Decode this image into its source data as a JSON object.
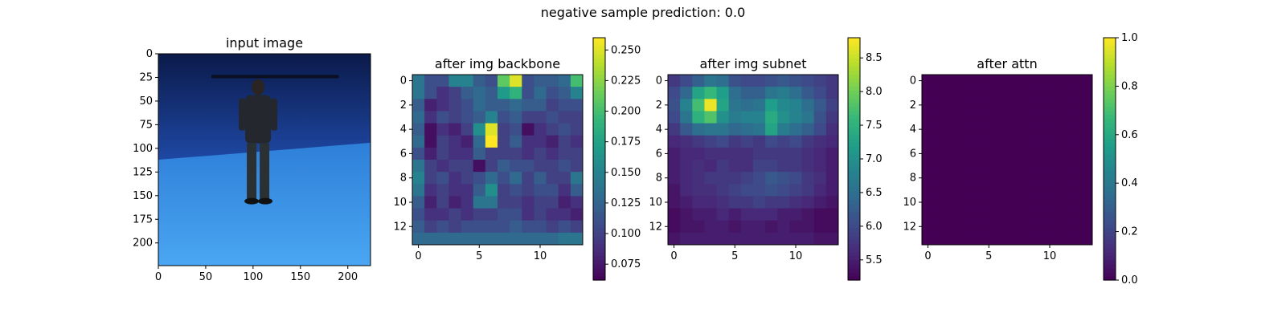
{
  "suptitle": "negative sample     prediction: 0.0",
  "chart_data": [
    {
      "type": "image",
      "title": "input image",
      "description_visible": "blue-lit studio, standing person in dark jacket",
      "x_ticks": [
        0,
        50,
        100,
        150,
        200
      ],
      "y_ticks": [
        0,
        25,
        50,
        75,
        100,
        125,
        150,
        175,
        200
      ],
      "xlim": [
        0,
        224
      ],
      "ylim": [
        224,
        0
      ]
    },
    {
      "type": "heatmap",
      "title": "after img backbone",
      "colormap": "viridis",
      "grid_size": 14,
      "x_ticks": [
        0,
        5,
        10
      ],
      "y_ticks": [
        0,
        2,
        4,
        6,
        8,
        10,
        12
      ],
      "colorbar": {
        "min": 0.062,
        "max": 0.26,
        "ticks": [
          0.075,
          0.1,
          0.125,
          0.15,
          0.175,
          0.2,
          0.225,
          0.25
        ],
        "labels": [
          "0.075",
          "0.100",
          "0.125",
          "0.150",
          "0.175",
          "0.200",
          "0.225",
          "0.250"
        ]
      },
      "values": [
        [
          0.14,
          0.11,
          0.11,
          0.15,
          0.15,
          0.12,
          0.11,
          0.21,
          0.25,
          0.11,
          0.12,
          0.12,
          0.13,
          0.2
        ],
        [
          0.14,
          0.11,
          0.09,
          0.1,
          0.12,
          0.13,
          0.12,
          0.17,
          0.19,
          0.11,
          0.13,
          0.11,
          0.12,
          0.15
        ],
        [
          0.12,
          0.08,
          0.09,
          0.1,
          0.11,
          0.13,
          0.12,
          0.12,
          0.13,
          0.12,
          0.12,
          0.1,
          0.11,
          0.11
        ],
        [
          0.13,
          0.09,
          0.11,
          0.1,
          0.11,
          0.12,
          0.15,
          0.11,
          0.12,
          0.1,
          0.1,
          0.11,
          0.1,
          0.1
        ],
        [
          0.12,
          0.07,
          0.09,
          0.08,
          0.1,
          0.16,
          0.25,
          0.1,
          0.11,
          0.07,
          0.09,
          0.1,
          0.11,
          0.1
        ],
        [
          0.13,
          0.07,
          0.1,
          0.09,
          0.08,
          0.13,
          0.26,
          0.1,
          0.12,
          0.09,
          0.09,
          0.08,
          0.1,
          0.09
        ],
        [
          0.11,
          0.08,
          0.1,
          0.09,
          0.09,
          0.12,
          0.1,
          0.1,
          0.1,
          0.09,
          0.1,
          0.09,
          0.1,
          0.1
        ],
        [
          0.14,
          0.1,
          0.09,
          0.1,
          0.1,
          0.07,
          0.1,
          0.12,
          0.11,
          0.11,
          0.1,
          0.1,
          0.11,
          0.1
        ],
        [
          0.15,
          0.1,
          0.11,
          0.09,
          0.1,
          0.11,
          0.13,
          0.11,
          0.13,
          0.1,
          0.12,
          0.1,
          0.1,
          0.14
        ],
        [
          0.14,
          0.09,
          0.1,
          0.09,
          0.09,
          0.12,
          0.16,
          0.1,
          0.11,
          0.1,
          0.11,
          0.11,
          0.09,
          0.12
        ],
        [
          0.12,
          0.08,
          0.1,
          0.08,
          0.09,
          0.14,
          0.14,
          0.1,
          0.1,
          0.09,
          0.1,
          0.1,
          0.08,
          0.09
        ],
        [
          0.11,
          0.09,
          0.09,
          0.1,
          0.09,
          0.1,
          0.1,
          0.11,
          0.11,
          0.09,
          0.1,
          0.09,
          0.09,
          0.08
        ],
        [
          0.12,
          0.1,
          0.11,
          0.1,
          0.11,
          0.11,
          0.11,
          0.11,
          0.12,
          0.11,
          0.11,
          0.1,
          0.11,
          0.1
        ],
        [
          0.13,
          0.13,
          0.13,
          0.13,
          0.13,
          0.13,
          0.13,
          0.13,
          0.13,
          0.13,
          0.13,
          0.13,
          0.14,
          0.14
        ]
      ]
    },
    {
      "type": "heatmap",
      "title": "after img subnet",
      "colormap": "viridis",
      "grid_size": 14,
      "x_ticks": [
        0,
        5,
        10
      ],
      "y_ticks": [
        0,
        2,
        4,
        6,
        8,
        10,
        12
      ],
      "colorbar": {
        "min": 5.2,
        "max": 8.8,
        "ticks": [
          5.5,
          6.0,
          6.5,
          7.0,
          7.5,
          8.0,
          8.5
        ],
        "labels": [
          "5.5",
          "6.0",
          "6.5",
          "7.0",
          "7.5",
          "8.0",
          "8.5"
        ]
      },
      "values": [
        [
          5.8,
          6.0,
          6.3,
          6.6,
          6.5,
          6.1,
          6.0,
          6.0,
          6.1,
          6.2,
          6.1,
          6.0,
          5.9,
          5.8
        ],
        [
          6.0,
          6.4,
          7.3,
          7.6,
          7.2,
          6.5,
          6.3,
          6.3,
          6.6,
          6.7,
          6.5,
          6.2,
          6.0,
          5.8
        ],
        [
          6.1,
          6.8,
          7.7,
          8.7,
          7.3,
          6.6,
          6.5,
          6.6,
          7.2,
          6.9,
          6.8,
          6.5,
          6.2,
          5.9
        ],
        [
          6.0,
          6.6,
          7.5,
          7.8,
          7.0,
          6.7,
          6.8,
          6.8,
          7.4,
          7.0,
          6.8,
          6.6,
          6.1,
          5.8
        ],
        [
          5.8,
          6.2,
          6.5,
          6.6,
          6.6,
          6.4,
          6.5,
          6.6,
          7.3,
          6.7,
          6.5,
          6.3,
          6.0,
          5.7
        ],
        [
          5.6,
          5.7,
          5.8,
          5.9,
          6.0,
          5.8,
          5.9,
          5.8,
          6.0,
          5.9,
          6.0,
          5.8,
          5.7,
          5.6
        ],
        [
          5.5,
          5.6,
          5.6,
          5.7,
          5.7,
          5.7,
          5.7,
          5.8,
          5.8,
          5.8,
          5.8,
          5.7,
          5.6,
          5.5
        ],
        [
          5.5,
          5.6,
          5.7,
          5.6,
          5.8,
          5.7,
          5.7,
          5.9,
          5.9,
          5.8,
          5.8,
          5.7,
          5.6,
          5.5
        ],
        [
          5.5,
          5.6,
          5.7,
          5.8,
          5.8,
          5.8,
          5.9,
          6.0,
          6.2,
          6.1,
          6.0,
          5.8,
          5.7,
          5.5
        ],
        [
          5.4,
          5.6,
          5.7,
          5.7,
          5.8,
          5.9,
          6.0,
          6.0,
          6.1,
          6.0,
          5.9,
          5.8,
          5.6,
          5.5
        ],
        [
          5.4,
          5.5,
          5.6,
          5.6,
          5.7,
          5.8,
          5.8,
          5.9,
          5.8,
          5.8,
          5.7,
          5.6,
          5.5,
          5.4
        ],
        [
          5.3,
          5.4,
          5.5,
          5.5,
          5.6,
          5.5,
          5.6,
          5.6,
          5.6,
          5.5,
          5.5,
          5.4,
          5.3,
          5.3
        ],
        [
          5.3,
          5.4,
          5.4,
          5.5,
          5.5,
          5.4,
          5.5,
          5.5,
          5.4,
          5.5,
          5.4,
          5.4,
          5.3,
          5.3
        ],
        [
          5.4,
          5.5,
          5.5,
          5.5,
          5.5,
          5.5,
          5.5,
          5.5,
          5.5,
          5.5,
          5.5,
          5.5,
          5.4,
          5.4
        ]
      ]
    },
    {
      "type": "heatmap",
      "title": "after attn",
      "colormap": "viridis",
      "grid_size": 14,
      "x_ticks": [
        0,
        5,
        10
      ],
      "y_ticks": [
        0,
        2,
        4,
        6,
        8,
        10,
        12
      ],
      "colorbar": {
        "min": 0.0,
        "max": 1.0,
        "ticks": [
          0.0,
          0.2,
          0.4,
          0.6,
          0.8,
          1.0
        ],
        "labels": [
          "0.0",
          "0.2",
          "0.4",
          "0.6",
          "0.8",
          "1.0"
        ]
      },
      "uniform_value": 0.0
    }
  ]
}
